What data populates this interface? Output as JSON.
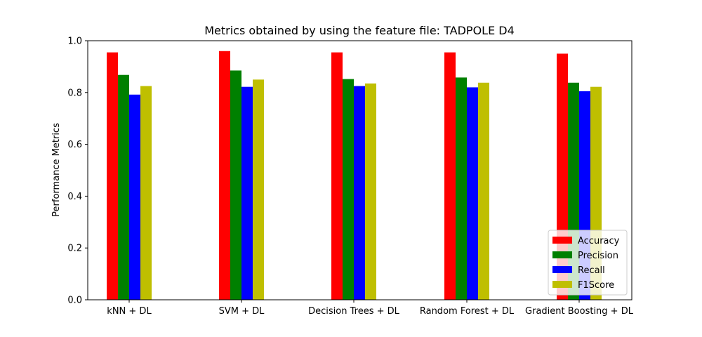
{
  "chart_data": {
    "type": "bar",
    "title": "Metrics obtained by using the feature file: TADPOLE D4",
    "xlabel": "",
    "ylabel": "Performance Metrics",
    "ylim": [
      0,
      1.0
    ],
    "yticks": [
      "0.0",
      "0.2",
      "0.4",
      "0.6",
      "0.8",
      "1.0"
    ],
    "grid": false,
    "legend_position": "bottom-right",
    "categories": [
      "kNN + DL",
      "SVM + DL",
      "Decision Trees + DL",
      "Random Forest + DL",
      "Gradient Boosting + DL"
    ],
    "series": [
      {
        "name": "Accuracy",
        "color": "#ff0000",
        "values": [
          0.955,
          0.96,
          0.955,
          0.955,
          0.95
        ]
      },
      {
        "name": "Precision",
        "color": "#008000",
        "values": [
          0.868,
          0.885,
          0.852,
          0.858,
          0.838
        ]
      },
      {
        "name": "Recall",
        "color": "#0000ff",
        "values": [
          0.792,
          0.822,
          0.825,
          0.82,
          0.805
        ]
      },
      {
        "name": "F1Score",
        "color": "#bfbf00",
        "values": [
          0.825,
          0.85,
          0.835,
          0.838,
          0.822
        ]
      }
    ]
  }
}
